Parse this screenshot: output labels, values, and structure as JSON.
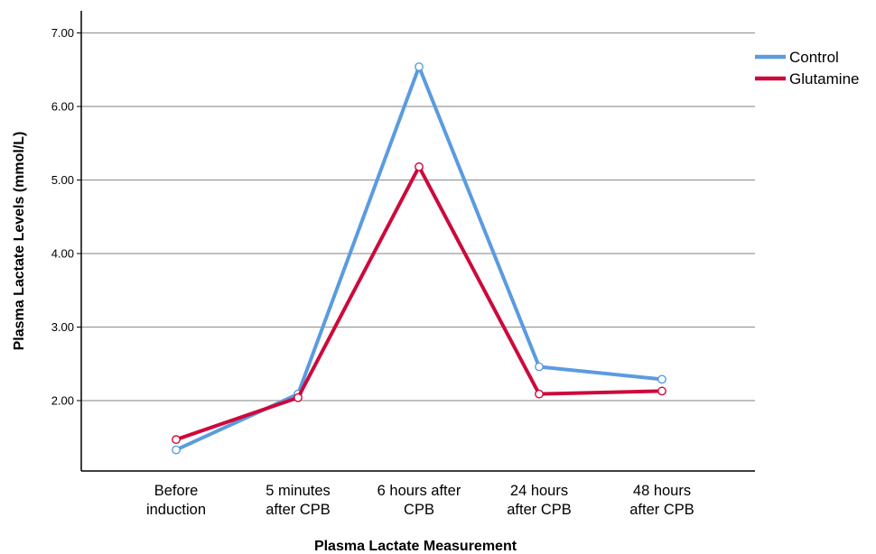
{
  "chart_data": {
    "type": "line",
    "title": "",
    "xlabel": "Plasma Lactate Measurement",
    "ylabel": "Plasma Lactate Levels (mmol/L)",
    "categories": [
      [
        "Before",
        "induction"
      ],
      [
        "5 minutes",
        "after CPB"
      ],
      [
        "6 hours after",
        "CPB"
      ],
      [
        "24 hours",
        "after CPB"
      ],
      [
        "48 hours",
        "after CPB"
      ]
    ],
    "y_ticks": [
      "2.00",
      "3.00",
      "4.00",
      "5.00",
      "6.00",
      "7.00"
    ],
    "ylim": [
      1.0,
      7.35
    ],
    "grid": true,
    "legend_position": "top-right",
    "series": [
      {
        "name": "Control",
        "color": "#5b9be0",
        "values": [
          1.33,
          2.09,
          6.54,
          2.46,
          2.29
        ]
      },
      {
        "name": "Glutamine",
        "color": "#cc0a3c",
        "values": [
          1.47,
          2.04,
          5.18,
          2.09,
          2.13
        ]
      }
    ]
  }
}
